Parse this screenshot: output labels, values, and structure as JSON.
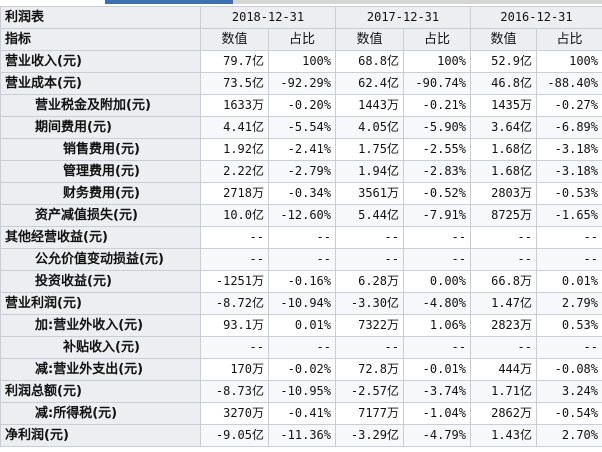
{
  "table": {
    "title": "利润表",
    "dates": [
      "2018-12-31",
      "2017-12-31",
      "2016-12-31"
    ],
    "indicator_header": "指标",
    "col_value": "数值",
    "col_pct": "占比",
    "rows": [
      {
        "label": "营业收入(元)",
        "indent": 0,
        "cells": [
          "79.7亿",
          "100%",
          "68.8亿",
          "100%",
          "52.9亿",
          "100%"
        ]
      },
      {
        "label": "营业成本(元)",
        "indent": 0,
        "cells": [
          "73.5亿",
          "-92.29%",
          "62.4亿",
          "-90.74%",
          "46.8亿",
          "-88.40%"
        ]
      },
      {
        "label": "营业税金及附加(元)",
        "indent": 1,
        "cells": [
          "1633万",
          "-0.20%",
          "1443万",
          "-0.21%",
          "1435万",
          "-0.27%"
        ]
      },
      {
        "label": "期间费用(元)",
        "indent": 1,
        "cells": [
          "4.41亿",
          "-5.54%",
          "4.05亿",
          "-5.90%",
          "3.64亿",
          "-6.89%"
        ]
      },
      {
        "label": "销售费用(元)",
        "indent": 2,
        "cells": [
          "1.92亿",
          "-2.41%",
          "1.75亿",
          "-2.55%",
          "1.68亿",
          "-3.18%"
        ]
      },
      {
        "label": "管理费用(元)",
        "indent": 2,
        "cells": [
          "2.22亿",
          "-2.79%",
          "1.94亿",
          "-2.83%",
          "1.68亿",
          "-3.18%"
        ]
      },
      {
        "label": "财务费用(元)",
        "indent": 2,
        "cells": [
          "2718万",
          "-0.34%",
          "3561万",
          "-0.52%",
          "2803万",
          "-0.53%"
        ]
      },
      {
        "label": "资产减值损失(元)",
        "indent": 1,
        "cells": [
          "10.0亿",
          "-12.60%",
          "5.44亿",
          "-7.91%",
          "8725万",
          "-1.65%"
        ]
      },
      {
        "label": "其他经营收益(元)",
        "indent": 0,
        "cells": [
          "--",
          "--",
          "--",
          "--",
          "--",
          "--"
        ]
      },
      {
        "label": "公允价值变动损益(元)",
        "indent": 1,
        "cells": [
          "--",
          "--",
          "--",
          "--",
          "--",
          "--"
        ]
      },
      {
        "label": "投资收益(元)",
        "indent": 1,
        "cells": [
          "-1251万",
          "-0.16%",
          "6.28万",
          "0.00%",
          "66.8万",
          "0.01%"
        ]
      },
      {
        "label": "营业利润(元)",
        "indent": 0,
        "cells": [
          "-8.72亿",
          "-10.94%",
          "-3.30亿",
          "-4.80%",
          "1.47亿",
          "2.79%"
        ]
      },
      {
        "label": "加:营业外收入(元)",
        "indent": 1,
        "cells": [
          "93.1万",
          "0.01%",
          "7322万",
          "1.06%",
          "2823万",
          "0.53%"
        ]
      },
      {
        "label": "补贴收入(元)",
        "indent": 2,
        "cells": [
          "--",
          "--",
          "--",
          "--",
          "--",
          "--"
        ]
      },
      {
        "label": "减:营业外支出(元)",
        "indent": 1,
        "cells": [
          "170万",
          "-0.02%",
          "72.8万",
          "-0.01%",
          "444万",
          "-0.08%"
        ]
      },
      {
        "label": "利润总额(元)",
        "indent": 0,
        "cells": [
          "-8.73亿",
          "-10.95%",
          "-2.57亿",
          "-3.74%",
          "1.71亿",
          "3.24%"
        ]
      },
      {
        "label": "减:所得税(元)",
        "indent": 1,
        "cells": [
          "3270万",
          "-0.41%",
          "7177万",
          "-1.04%",
          "2862万",
          "-0.54%"
        ]
      },
      {
        "label": "净利润(元)",
        "indent": 0,
        "cells": [
          "-9.05亿",
          "-11.36%",
          "-3.29亿",
          "-4.79%",
          "1.43亿",
          "2.70%"
        ]
      }
    ]
  }
}
